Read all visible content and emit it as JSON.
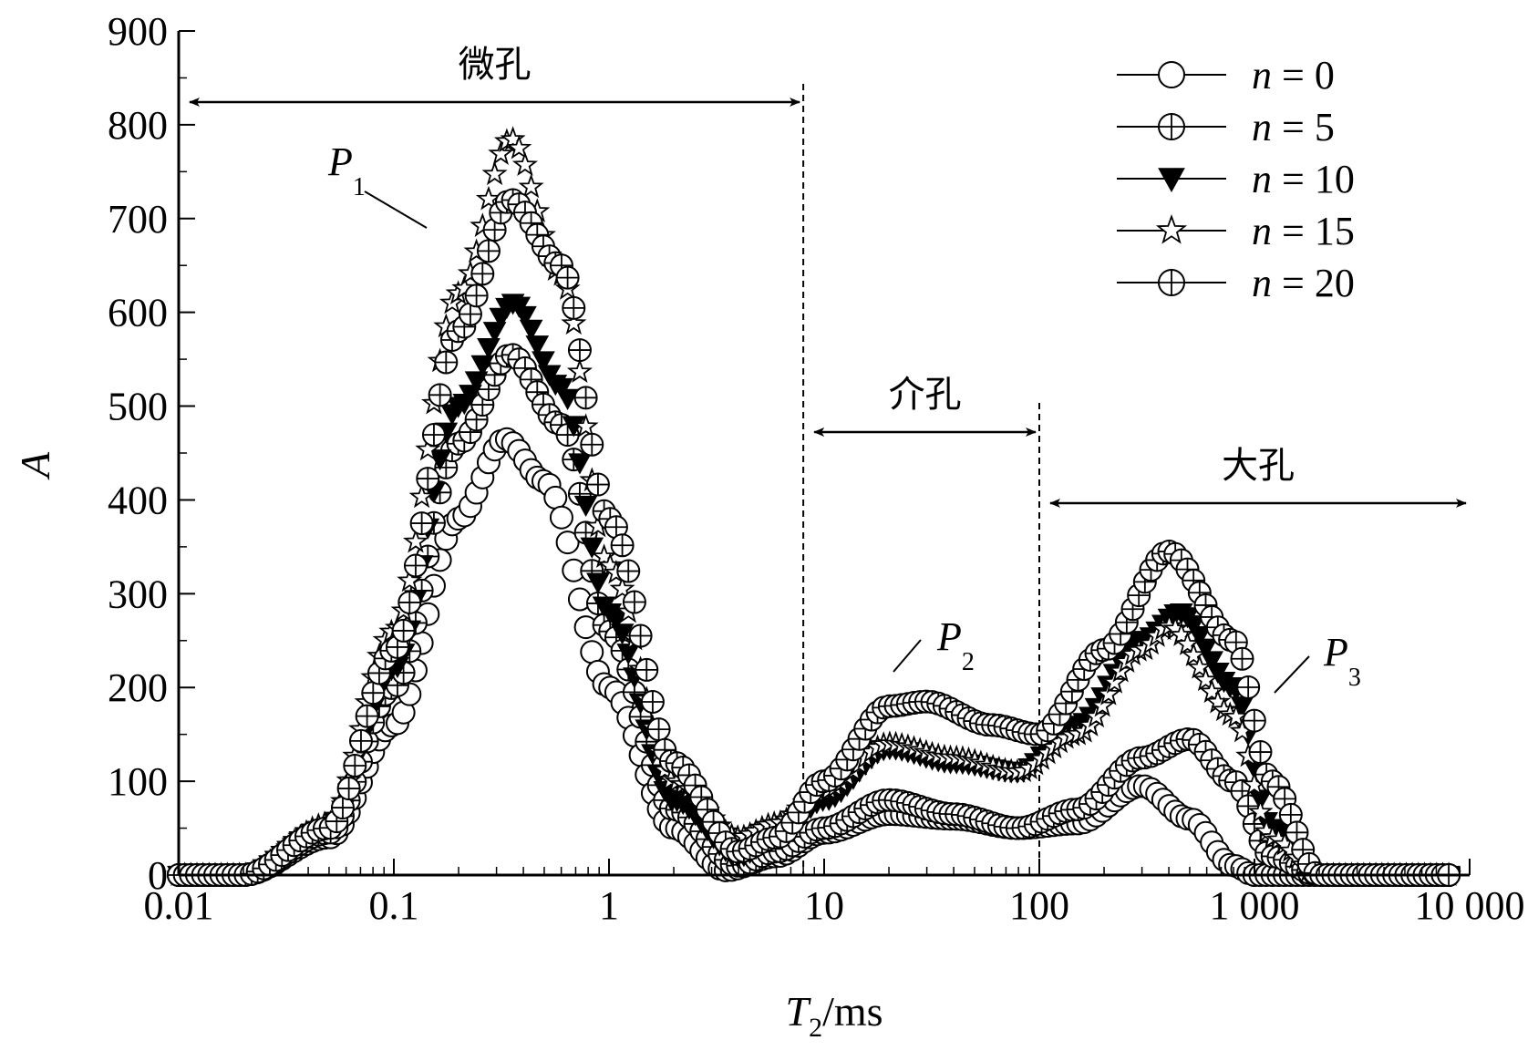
{
  "chart_data": {
    "type": "scatter",
    "xscale": "log",
    "xlim": [
      0.01,
      10000
    ],
    "ylim": [
      0,
      900
    ],
    "xlabel": {
      "main": "T",
      "sub": "2",
      "unit": "/ms"
    },
    "ylabel": "A",
    "x_ticks": [
      {
        "value": 0.01,
        "label": "0.01"
      },
      {
        "value": 0.1,
        "label": "0.1"
      },
      {
        "value": 1,
        "label": "1"
      },
      {
        "value": 10,
        "label": "10"
      },
      {
        "value": 100,
        "label": "100"
      },
      {
        "value": 1000,
        "label": "1 000"
      },
      {
        "value": 10000,
        "label": "10 000"
      }
    ],
    "y_ticks": [
      {
        "value": 0,
        "label": "0"
      },
      {
        "value": 100,
        "label": "100"
      },
      {
        "value": 200,
        "label": "200"
      },
      {
        "value": 300,
        "label": "300"
      },
      {
        "value": 400,
        "label": "400"
      },
      {
        "value": 500,
        "label": "500"
      },
      {
        "value": 600,
        "label": "600"
      },
      {
        "value": 700,
        "label": "700"
      },
      {
        "value": 800,
        "label": "800"
      },
      {
        "value": 900,
        "label": "900"
      }
    ],
    "series": [
      {
        "name": "n = 0",
        "n": "0",
        "marker": "circle",
        "x": [
          0.01,
          0.02,
          0.05,
          0.1,
          0.2,
          0.33,
          0.5,
          1,
          2,
          3.5,
          6,
          10,
          20,
          40,
          80,
          150,
          300,
          500,
          800,
          1000,
          2000,
          8000
        ],
        "y": [
          0,
          0,
          40,
          160,
          380,
          465,
          420,
          200,
          50,
          5,
          20,
          45,
          65,
          60,
          50,
          55,
          95,
          60,
          10,
          0,
          0,
          0
        ]
      },
      {
        "name": "n = 5",
        "n": "5",
        "marker": "circle-plus",
        "x": [
          0.01,
          0.02,
          0.05,
          0.1,
          0.2,
          0.35,
          0.6,
          1,
          2,
          4,
          6,
          10,
          20,
          40,
          80,
          150,
          300,
          500,
          800,
          1200,
          2000,
          8000
        ],
        "y": [
          0,
          0,
          45,
          200,
          460,
          555,
          480,
          260,
          70,
          10,
          25,
          50,
          80,
          65,
          50,
          70,
          125,
          145,
          100,
          20,
          0,
          0
        ]
      },
      {
        "name": "n = 10",
        "n": "10",
        "marker": "triangle-down",
        "x": [
          0.01,
          0.02,
          0.05,
          0.1,
          0.2,
          0.36,
          0.6,
          1,
          2,
          4,
          6,
          10,
          20,
          40,
          80,
          150,
          300,
          450,
          800,
          1200,
          2000,
          8000
        ],
        "y": [
          0,
          0,
          50,
          220,
          500,
          610,
          520,
          280,
          80,
          20,
          40,
          80,
          135,
          120,
          110,
          160,
          250,
          280,
          200,
          50,
          0,
          0
        ]
      },
      {
        "name": "n = 15",
        "n": "15",
        "marker": "star",
        "x": [
          0.01,
          0.02,
          0.05,
          0.1,
          0.2,
          0.35,
          0.6,
          1,
          2,
          4,
          6,
          10,
          20,
          40,
          80,
          150,
          300,
          400,
          800,
          1200,
          2000,
          8000
        ],
        "y": [
          0,
          0,
          55,
          260,
          620,
          785,
          640,
          330,
          100,
          40,
          55,
          90,
          140,
          125,
          110,
          150,
          240,
          265,
          170,
          40,
          0,
          0
        ]
      },
      {
        "name": "n = 20",
        "n": "20",
        "marker": "circle-plus",
        "x": [
          0.01,
          0.02,
          0.05,
          0.1,
          0.2,
          0.35,
          0.6,
          1,
          2,
          4,
          6,
          10,
          20,
          30,
          60,
          100,
          200,
          400,
          800,
          1200,
          2000,
          8000
        ],
        "y": [
          0,
          0,
          50,
          240,
          580,
          720,
          650,
          380,
          120,
          25,
          40,
          100,
          180,
          185,
          160,
          150,
          240,
          345,
          250,
          100,
          0,
          0
        ]
      }
    ],
    "regions": [
      {
        "label": "微孔",
        "from": 0.01,
        "to": 8
      },
      {
        "label": "介孔",
        "from": 8,
        "to": 100
      },
      {
        "label": "大孔",
        "from": 100,
        "to": 10000
      }
    ],
    "boundaries": [
      8,
      100
    ],
    "peaks": [
      {
        "label": "P",
        "sub": "1",
        "x": 0.22,
        "y": 690
      },
      {
        "label": "P",
        "sub": "2",
        "x": 15,
        "y": 215
      },
      {
        "label": "P",
        "sub": "3",
        "x": 1600,
        "y": 180
      }
    ],
    "legend_position": "top-right"
  }
}
